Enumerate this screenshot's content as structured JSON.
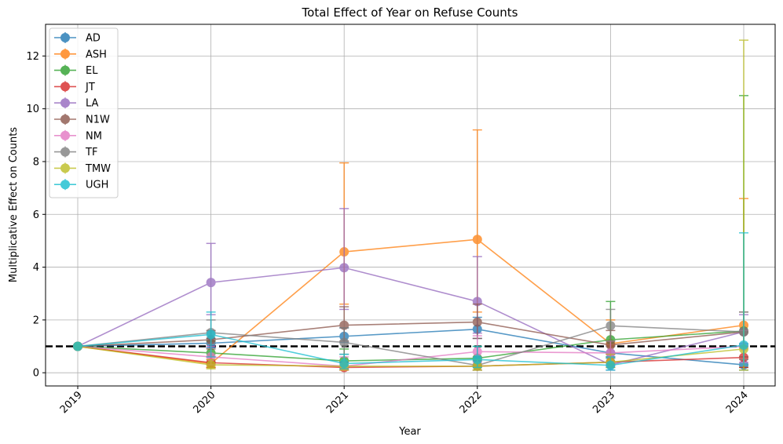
{
  "chart_data": {
    "type": "line",
    "title": "Total Effect of Year on Refuse Counts",
    "xlabel": "Year",
    "ylabel": "Multiplicative Effect on Counts",
    "x": [
      "2019",
      "2020",
      "2021",
      "2022",
      "2023",
      "2024"
    ],
    "ylim": [
      -0.5,
      13.2
    ],
    "yticks": [
      0,
      2,
      4,
      6,
      8,
      10,
      12
    ],
    "grid": true,
    "legend_position": "top-left",
    "reference_line": {
      "y": 1,
      "style": "dashed",
      "color": "#000000"
    },
    "series": [
      {
        "name": "AD",
        "color": "#1f77b4",
        "values": [
          1,
          1.12,
          1.38,
          1.65,
          0.75,
          0.3
        ],
        "err_low": [
          1,
          0.95,
          1.15,
          1.3,
          0.55,
          0.1
        ],
        "err_high": [
          1,
          1.3,
          1.7,
          2.1,
          1.0,
          1.1
        ]
      },
      {
        "name": "ASH",
        "color": "#ff7f0e",
        "values": [
          1,
          0.35,
          4.58,
          5.05,
          1.1,
          1.8
        ],
        "err_low": [
          1,
          0.2,
          2.6,
          2.3,
          0.4,
          0.3
        ],
        "err_high": [
          1,
          0.5,
          7.95,
          9.2,
          2.0,
          6.6
        ]
      },
      {
        "name": "EL",
        "color": "#2ca02c",
        "values": [
          1,
          0.75,
          0.45,
          0.55,
          1.25,
          1.58
        ],
        "err_low": [
          1,
          0.4,
          0.2,
          0.25,
          0.6,
          0.2
        ],
        "err_high": [
          1,
          1.2,
          0.9,
          1.0,
          2.7,
          10.5
        ]
      },
      {
        "name": "JT",
        "color": "#d62728",
        "values": [
          1,
          0.38,
          0.2,
          0.25,
          0.4,
          0.58
        ],
        "err_low": [
          1,
          0.2,
          0.1,
          0.1,
          0.2,
          0.2
        ],
        "err_high": [
          1,
          0.6,
          0.4,
          0.45,
          0.7,
          1.0
        ]
      },
      {
        "name": "LA",
        "color": "#9467bd",
        "values": [
          1,
          3.42,
          3.98,
          2.7,
          0.3,
          1.55
        ],
        "err_low": [
          1,
          2.2,
          2.4,
          1.5,
          0.1,
          0.3
        ],
        "err_high": [
          1,
          4.9,
          6.22,
          4.4,
          0.7,
          2.2
        ]
      },
      {
        "name": "N1W",
        "color": "#8c564b",
        "values": [
          1,
          1.25,
          1.8,
          1.92,
          1.05,
          1.55
        ],
        "err_low": [
          1,
          0.9,
          1.2,
          1.3,
          0.6,
          0.6
        ],
        "err_high": [
          1,
          1.6,
          2.5,
          2.6,
          1.6,
          2.3
        ]
      },
      {
        "name": "NM",
        "color": "#e377c2",
        "values": [
          1,
          0.6,
          0.25,
          0.8,
          0.75,
          1.0
        ],
        "err_low": [
          1,
          0.3,
          0.1,
          0.4,
          0.4,
          0.4
        ],
        "err_high": [
          1,
          1.0,
          0.6,
          1.4,
          1.2,
          1.6
        ]
      },
      {
        "name": "TF",
        "color": "#7f7f7f",
        "values": [
          1,
          1.52,
          1.15,
          0.28,
          1.78,
          1.55
        ],
        "err_low": [
          1,
          1.1,
          0.7,
          0.1,
          1.2,
          0.5
        ],
        "err_high": [
          1,
          2.0,
          1.7,
          0.6,
          2.4,
          2.3
        ]
      },
      {
        "name": "TMW",
        "color": "#bcbd22",
        "values": [
          1,
          0.3,
          0.25,
          0.25,
          0.4,
          0.9
        ],
        "err_low": [
          1,
          0.15,
          0.1,
          0.1,
          0.2,
          0.1
        ],
        "err_high": [
          1,
          0.5,
          0.45,
          0.5,
          0.7,
          12.6
        ]
      },
      {
        "name": "UGH",
        "color": "#17becf",
        "values": [
          1,
          1.45,
          0.35,
          0.5,
          0.28,
          1.05
        ],
        "err_low": [
          1,
          0.6,
          0.15,
          0.2,
          0.1,
          0.3
        ],
        "err_high": [
          1,
          2.3,
          0.7,
          1.0,
          0.6,
          5.3
        ]
      }
    ]
  }
}
